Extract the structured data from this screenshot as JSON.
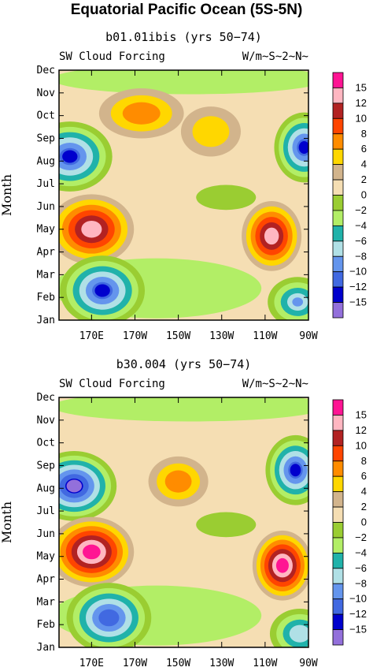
{
  "title": "Equatorial Pacific Ocean (5S-5N)",
  "colorbar": {
    "labels": [
      "15",
      "12",
      "10",
      "8",
      "6",
      "4",
      "2",
      "0",
      "−2",
      "−4",
      "−6",
      "−8",
      "−10",
      "−12",
      "−15"
    ],
    "colors": [
      "#ff1493",
      "#ffb6c1",
      "#b22222",
      "#ff4500",
      "#ff8c00",
      "#ffd700",
      "#d2b48c",
      "#f5deb3",
      "#9acd32",
      "#b2ee66",
      "#20b2aa",
      "#b0e0e6",
      "#6495ed",
      "#4169e1",
      "#0000cd",
      "#9370db"
    ]
  },
  "chart_data": [
    {
      "type": "heatmap",
      "title": "b01.01ibis (yrs 50−74)",
      "left_label": "SW Cloud Forcing",
      "right_label": "W/m~S~2~N~",
      "ylabel": "Month",
      "x_ticks": [
        "170E",
        "170W",
        "150W",
        "130W",
        "110W",
        "90W"
      ],
      "y_ticks": [
        "Jan",
        "Feb",
        "Mar",
        "Apr",
        "May",
        "Jun",
        "Jul",
        "Aug",
        "Sep",
        "Oct",
        "Nov",
        "Dec"
      ],
      "xlim": [
        "155E",
        "90W"
      ],
      "features": [
        {
          "lon": 160,
          "month": 8.2,
          "value": -14
        },
        {
          "lon": 170,
          "month": 5.0,
          "value": 12
        },
        {
          "lon": 175,
          "month": 2.3,
          "value": -13
        },
        {
          "lon": 193,
          "month": 10.1,
          "value": 6
        },
        {
          "lon": 225,
          "month": 9.3,
          "value": 4
        },
        {
          "lon": 253,
          "month": 4.7,
          "value": 13
        },
        {
          "lon": 265,
          "month": 1.8,
          "value": -9
        },
        {
          "lon": 268,
          "month": 8.6,
          "value": -14
        }
      ]
    },
    {
      "type": "heatmap",
      "title": "b30.004 (yrs 50−74)",
      "left_label": "SW Cloud Forcing",
      "right_label": "W/m~S~2~N~",
      "ylabel": "Month",
      "x_ticks": [
        "170E",
        "170W",
        "150W",
        "130W",
        "110W",
        "90W"
      ],
      "y_ticks": [
        "Jan",
        "Feb",
        "Mar",
        "Apr",
        "May",
        "Jun",
        "Jul",
        "Aug",
        "Sep",
        "Oct",
        "Nov",
        "Dec"
      ],
      "xlim": [
        "155E",
        "90W"
      ],
      "features": [
        {
          "lon": 162,
          "month": 8.1,
          "value": -16
        },
        {
          "lon": 170,
          "month": 5.2,
          "value": 16
        },
        {
          "lon": 178,
          "month": 2.3,
          "value": -12
        },
        {
          "lon": 210,
          "month": 8.3,
          "value": 7
        },
        {
          "lon": 258,
          "month": 4.6,
          "value": 16
        },
        {
          "lon": 266,
          "month": 1.6,
          "value": -8
        },
        {
          "lon": 264,
          "month": 8.8,
          "value": -13
        }
      ]
    }
  ]
}
